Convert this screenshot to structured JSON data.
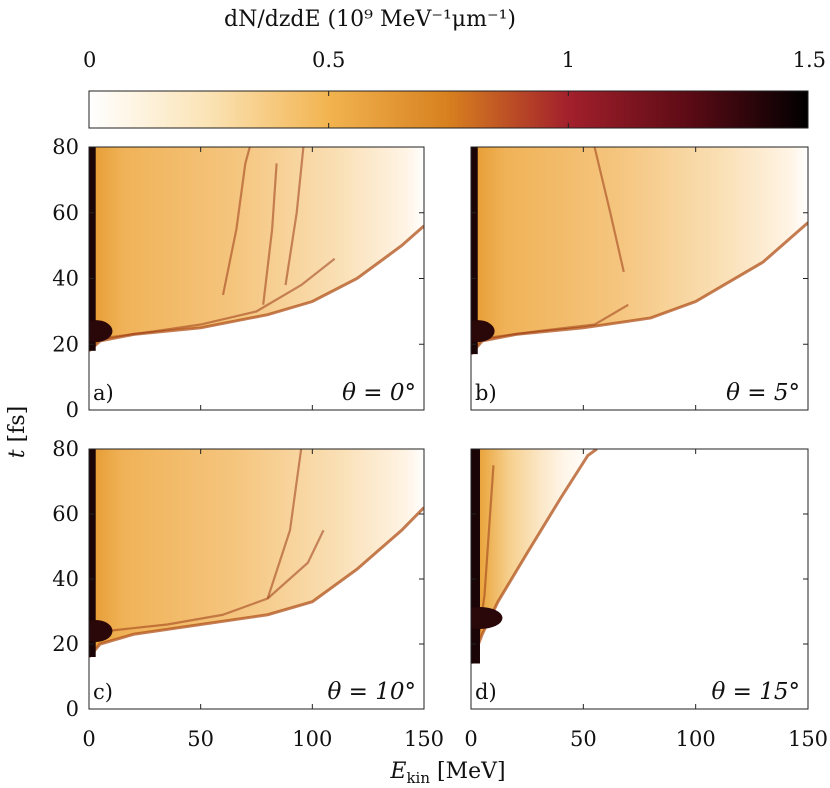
{
  "chart_data": {
    "type": "heatmap",
    "colorbar": {
      "title": "dN/dzdE (10⁹ MeV⁻¹μm⁻¹)",
      "ticks": [
        "0",
        "0.5",
        "1",
        "1.5"
      ],
      "tick_values": [
        0,
        0.5,
        1,
        1.5
      ],
      "range": [
        0,
        1.5
      ],
      "colormap": [
        "#ffffff",
        "#fbe3b5",
        "#f2b450",
        "#d7801f",
        "#a2202c",
        "#5c0b15",
        "#000000"
      ]
    },
    "x_axis": {
      "label": "E_kin [MeV]",
      "label_main": "E",
      "label_sub": "kin",
      "label_unit": " [MeV]",
      "range": [
        0,
        150
      ],
      "ticks": [
        "0",
        "50",
        "100",
        "150"
      ],
      "tick_values": [
        0,
        50,
        100,
        150
      ]
    },
    "y_axis": {
      "label": "t [fs]",
      "label_main": "t",
      "label_unit": " [fs]",
      "range": [
        0,
        80
      ],
      "ticks": [
        "0",
        "20",
        "40",
        "60",
        "80"
      ],
      "tick_values": [
        0,
        20,
        40,
        60,
        80
      ]
    },
    "panels": [
      {
        "tag": "a)",
        "angle": "θ = 0°",
        "front": [
          [
            0,
            18
          ],
          [
            5,
            21
          ],
          [
            20,
            23
          ],
          [
            50,
            25
          ],
          [
            80,
            29
          ],
          [
            100,
            33
          ],
          [
            120,
            40
          ],
          [
            140,
            50
          ],
          [
            150,
            56
          ]
        ],
        "streaks": [
          [
            [
              8,
              22
            ],
            [
              30,
              24
            ],
            [
              50,
              26
            ],
            [
              75,
              30
            ],
            [
              95,
              38
            ],
            [
              110,
              46
            ]
          ],
          [
            [
              60,
              35
            ],
            [
              66,
              55
            ],
            [
              70,
              75
            ],
            [
              72,
              80
            ]
          ],
          [
            [
              88,
              38
            ],
            [
              93,
              60
            ],
            [
              96,
              80
            ]
          ],
          [
            [
              78,
              32
            ],
            [
              82,
              55
            ],
            [
              84,
              75
            ]
          ]
        ]
      },
      {
        "tag": "b)",
        "angle": "θ = 5°",
        "front": [
          [
            0,
            17
          ],
          [
            5,
            21
          ],
          [
            20,
            23
          ],
          [
            50,
            25
          ],
          [
            80,
            28
          ],
          [
            100,
            33
          ],
          [
            130,
            45
          ],
          [
            150,
            57
          ]
        ],
        "streaks": [
          [
            [
              8,
              22
            ],
            [
              30,
              24
            ],
            [
              55,
              26
            ],
            [
              70,
              32
            ]
          ],
          [
            [
              55,
              80
            ],
            [
              62,
              60
            ],
            [
              68,
              42
            ]
          ]
        ]
      },
      {
        "tag": "c)",
        "angle": "θ = 10°",
        "front": [
          [
            0,
            16
          ],
          [
            5,
            20
          ],
          [
            20,
            23
          ],
          [
            50,
            26
          ],
          [
            80,
            29
          ],
          [
            100,
            33
          ],
          [
            120,
            43
          ],
          [
            140,
            55
          ],
          [
            150,
            62
          ]
        ],
        "streaks": [
          [
            [
              8,
              24
            ],
            [
              35,
              26
            ],
            [
              60,
              29
            ],
            [
              80,
              34
            ],
            [
              98,
              45
            ],
            [
              105,
              55
            ]
          ],
          [
            [
              80,
              34
            ],
            [
              90,
              55
            ],
            [
              95,
              80
            ]
          ]
        ]
      },
      {
        "tag": "d)",
        "angle": "θ = 15°",
        "front": [
          [
            0,
            14
          ],
          [
            5,
            23
          ],
          [
            12,
            33
          ],
          [
            25,
            48
          ],
          [
            40,
            65
          ],
          [
            52,
            78
          ],
          [
            56,
            80
          ]
        ],
        "streaks": [
          [
            [
              3,
              20
            ],
            [
              6,
              35
            ],
            [
              8,
              55
            ],
            [
              10,
              75
            ]
          ]
        ]
      }
    ]
  }
}
